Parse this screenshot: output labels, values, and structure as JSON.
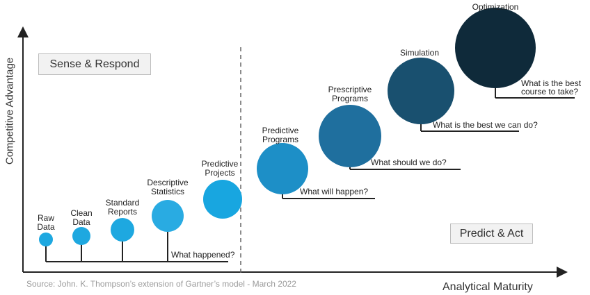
{
  "axes": {
    "y_label": "Competitive Advantage",
    "x_label": "Analytical Maturity"
  },
  "regions": {
    "left": "Sense & Respond",
    "right": "Predict & Act"
  },
  "source": "Source: John. K. Thompson’s extension of Gartner’s model - March 2022",
  "stages": [
    {
      "title": [
        "Raw",
        "Data"
      ],
      "color": "#1ea8e0"
    },
    {
      "title": [
        "Clean",
        "Data"
      ],
      "color": "#1ea8e0"
    },
    {
      "title": [
        "Standard",
        "Reports"
      ],
      "color": "#1ea8e0"
    },
    {
      "title": [
        "Descriptive",
        "Statistics"
      ],
      "color": "#29abe2"
    },
    {
      "title": [
        "Predictive",
        "Projects"
      ],
      "color": "#18a6e0"
    },
    {
      "title": [
        "Predictive",
        "Programs"
      ],
      "color": "#1d8fc7",
      "question": [
        "What will happen?"
      ]
    },
    {
      "title": [
        "Prescriptive",
        "Programs"
      ],
      "color": "#1f6f9e",
      "question": [
        "What should we do?"
      ]
    },
    {
      "title": [
        "Simulation"
      ],
      "color": "#19506f",
      "question": [
        "What is the best we can do?"
      ]
    },
    {
      "title": [
        "Optimization"
      ],
      "color": "#0f2a3a",
      "question": [
        "What is the best",
        "course to take?"
      ]
    }
  ],
  "baseline_question": "What happened?"
}
